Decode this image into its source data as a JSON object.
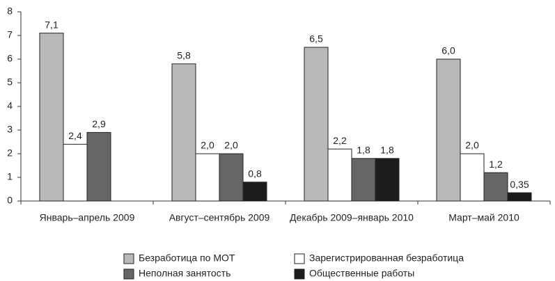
{
  "chart_data": {
    "type": "bar",
    "categories": [
      "Январь–апрель 2009",
      "Август–сентябрь 2009",
      "Декабрь 2009–январь 2010",
      "Март–май 2010"
    ],
    "series": [
      {
        "name": "Безработица по МОТ",
        "color": "#b9b9b9",
        "values": [
          7.1,
          5.8,
          6.5,
          6.0
        ],
        "value_labels": [
          "7,1",
          "5,8",
          "6,5",
          "6,0"
        ]
      },
      {
        "name": "Зарегистрированная безработица",
        "color": "#ffffff",
        "values": [
          2.4,
          2.0,
          2.2,
          2.0
        ],
        "value_labels": [
          "2,4",
          "2,0",
          "2,2",
          "2,0"
        ]
      },
      {
        "name": "Неполная занятость",
        "color": "#666666",
        "values": [
          2.9,
          2.0,
          1.8,
          1.2
        ],
        "value_labels": [
          "2,9",
          "2,0",
          "1,8",
          "1,2"
        ]
      },
      {
        "name": "Общественные работы",
        "color": "#1c1c1c",
        "values": [
          null,
          0.8,
          1.8,
          0.35
        ],
        "value_labels": [
          null,
          "0,8",
          "1,8",
          "0,35"
        ]
      }
    ],
    "ylim": [
      0,
      8
    ],
    "yticks": [
      0,
      1,
      2,
      3,
      4,
      5,
      6,
      7,
      8
    ],
    "grid": false
  }
}
